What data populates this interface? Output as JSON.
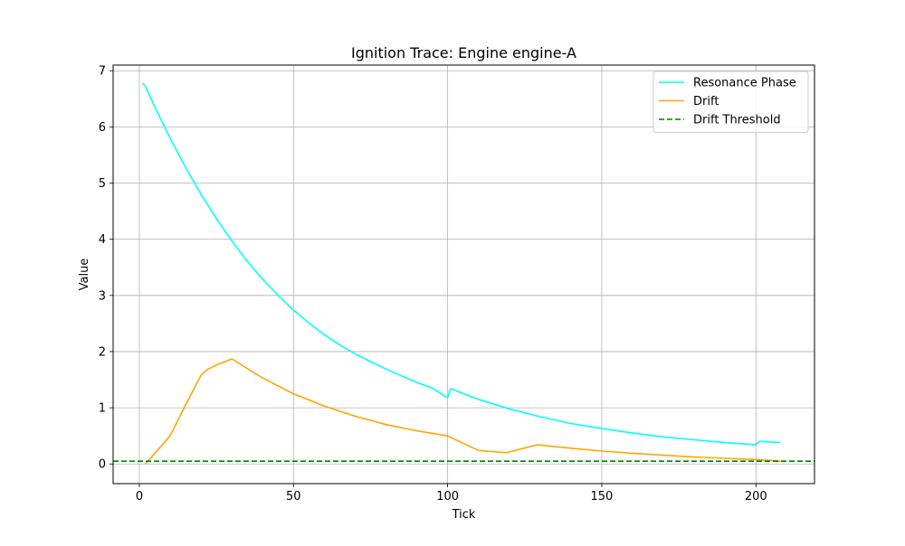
{
  "chart_data": {
    "type": "line",
    "title": "Ignition Trace: Engine engine-A",
    "xlabel": "Tick",
    "ylabel": "Value",
    "xlim": [
      -8.5,
      219
    ],
    "ylim": [
      -0.35,
      7.1
    ],
    "xticks": [
      0,
      50,
      100,
      150,
      200
    ],
    "yticks": [
      0,
      1,
      2,
      3,
      4,
      5,
      6,
      7
    ],
    "grid": true,
    "legend_position": "top-right",
    "series": [
      {
        "name": "Resonance Phase",
        "color": "#00ffff",
        "style": "solid",
        "x": [
          1,
          2,
          5,
          10,
          15,
          20,
          25,
          30,
          35,
          40,
          45,
          50,
          55,
          60,
          65,
          70,
          75,
          80,
          85,
          90,
          95,
          100,
          101,
          102,
          110,
          120,
          130,
          140,
          150,
          160,
          170,
          180,
          190,
          200,
          201,
          202,
          208
        ],
        "y": [
          6.78,
          6.72,
          6.36,
          5.8,
          5.28,
          4.8,
          4.37,
          3.97,
          3.61,
          3.29,
          3.0,
          2.74,
          2.51,
          2.3,
          2.12,
          1.96,
          1.82,
          1.69,
          1.57,
          1.45,
          1.35,
          1.18,
          1.34,
          1.32,
          1.15,
          0.98,
          0.84,
          0.72,
          0.63,
          0.55,
          0.48,
          0.43,
          0.38,
          0.34,
          0.4,
          0.4,
          0.38
        ]
      },
      {
        "name": "Drift",
        "color": "#ffa500",
        "style": "solid",
        "x": [
          2,
          10,
          15,
          20,
          22,
          25,
          30,
          40,
          50,
          60,
          70,
          80,
          90,
          100,
          110,
          119,
          129,
          140,
          150,
          160,
          170,
          180,
          190,
          200,
          205,
          208
        ],
        "y": [
          0.0,
          0.5,
          1.05,
          1.58,
          1.68,
          1.76,
          1.87,
          1.53,
          1.25,
          1.03,
          0.85,
          0.7,
          0.59,
          0.5,
          0.24,
          0.2,
          0.34,
          0.28,
          0.23,
          0.19,
          0.155,
          0.125,
          0.1,
          0.08,
          0.06,
          0.05
        ]
      },
      {
        "name": "Drift Threshold",
        "color": "#008000",
        "style": "dashed",
        "y_constant": 0.05
      }
    ]
  }
}
